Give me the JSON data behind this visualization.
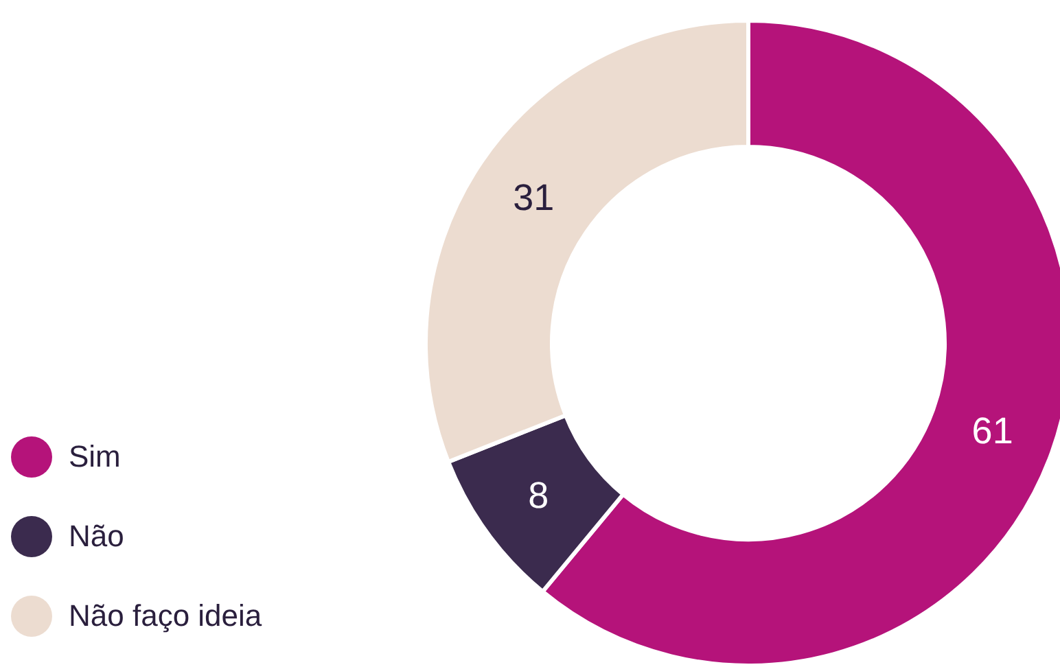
{
  "chart_data": {
    "type": "donut",
    "categories": [
      "Sim",
      "Não",
      "Não faço ideia"
    ],
    "values": [
      61,
      8,
      31
    ],
    "colors": [
      "#b5137a",
      "#3b2b4e",
      "#ecdcd0"
    ],
    "data_labels": true,
    "legend": "bottom left"
  }
}
